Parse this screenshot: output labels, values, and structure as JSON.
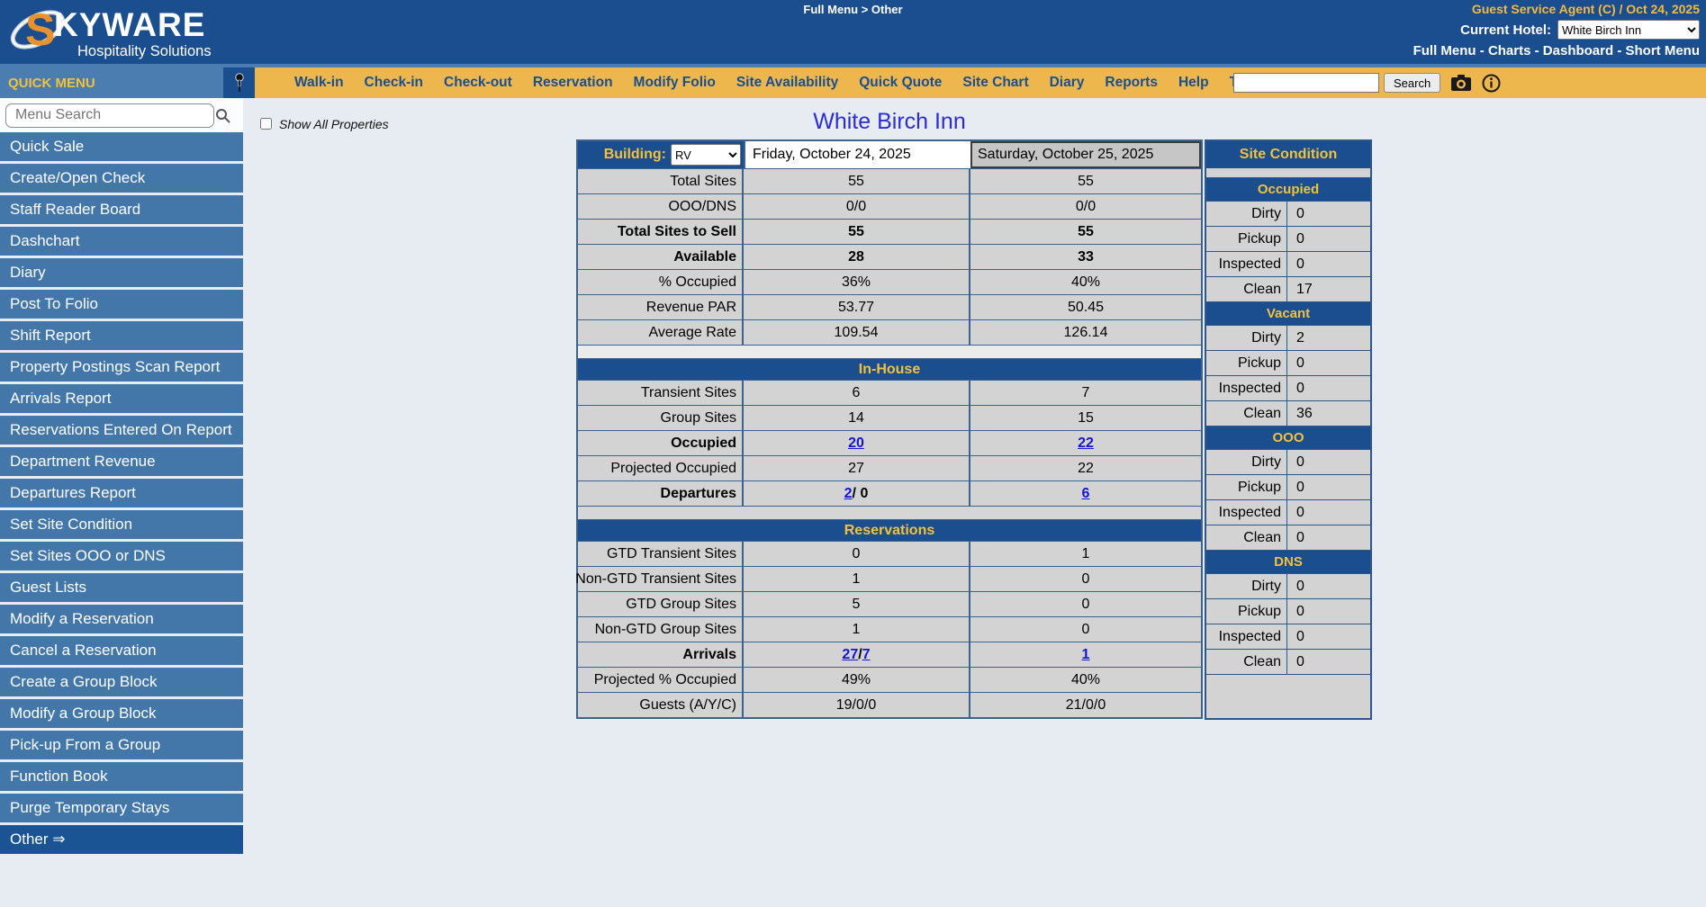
{
  "colors": {
    "navy": "#1B4E8E",
    "gold_bar": "#EDB74D",
    "gold_text": "#F2C13D",
    "sidebar_blue": "#4377A9",
    "sidebar_header_blue": "#4C7DB0",
    "cell_gray": "#D3D3D3",
    "table_border": "#3D628C",
    "link_blue": "#1515D0",
    "title_blue": "#2B2BD8",
    "page_bg": "#E7ECF2"
  },
  "header": {
    "brand_s": "S",
    "brand_rest": "KYWARE",
    "tagline": "Hospitality Solutions",
    "breadcrumb": "Full Menu > Other",
    "agent_info": "Guest Service Agent (C) / Oct 24, 2025",
    "current_hotel_label": "Current Hotel:",
    "current_hotel_value": "White Birch Inn",
    "nav_links": [
      "Full Menu",
      "Charts",
      "Dashboard",
      "Short Menu"
    ],
    "nav_separator": " - "
  },
  "menubar": {
    "items": [
      "Walk-in",
      "Check-in",
      "Check-out",
      "Reservation",
      "Modify Folio",
      "Site Availability",
      "Quick Quote",
      "Site Chart",
      "Diary",
      "Reports",
      "Help",
      "Training"
    ],
    "search_value": "",
    "search_button": "Search"
  },
  "sidebar": {
    "title": "QUICK MENU",
    "search_placeholder": "Menu Search",
    "items": [
      "Quick Sale",
      "Create/Open Check",
      "Staff Reader Board",
      "Dashchart",
      "Diary",
      "Post To Folio",
      "Shift Report",
      "Property Postings Scan Report",
      "Arrivals Report",
      "Reservations Entered On Report",
      "Department Revenue",
      "Departures Report",
      "Set Site Condition",
      "Set Sites OOO or DNS",
      "Guest Lists",
      "Modify a Reservation",
      "Cancel a Reservation",
      "Create a Group Block",
      "Modify a Group Block",
      "Pick-up From a Group",
      "Function Book",
      "Purge Temporary Stays"
    ],
    "last_item": "Other ⇒"
  },
  "content": {
    "show_all_label": "Show All Properties",
    "title": "White Birch Inn"
  },
  "table": {
    "building_label": "Building:",
    "building_value": "RV",
    "date_columns": [
      "Friday, October 24, 2025",
      "Saturday, October 25, 2025"
    ],
    "sections": [
      {
        "band": null,
        "spacer_color": null,
        "rows": [
          {
            "label": "Total Sites",
            "bold": false,
            "cells": [
              [
                "55"
              ],
              [
                "55"
              ]
            ]
          },
          {
            "label": "OOO/DNS",
            "bold": false,
            "cells": [
              [
                "0/0"
              ],
              [
                "0/0"
              ]
            ]
          },
          {
            "label": "Total Sites to Sell",
            "bold": true,
            "cells": [
              [
                "55"
              ],
              [
                "55"
              ]
            ]
          },
          {
            "label": "Available",
            "bold": true,
            "cells": [
              [
                "28"
              ],
              [
                "33"
              ]
            ]
          },
          {
            "label": "% Occupied",
            "bold": false,
            "cells": [
              [
                "36%"
              ],
              [
                "40%"
              ]
            ]
          },
          {
            "label": "Revenue PAR",
            "bold": false,
            "cells": [
              [
                "53.77"
              ],
              [
                "50.45"
              ]
            ]
          },
          {
            "label": "Average Rate",
            "bold": false,
            "cells": [
              [
                "109.54"
              ],
              [
                "126.14"
              ]
            ]
          }
        ]
      },
      {
        "band": "In-House",
        "spacer_color": "#EBEBEB",
        "rows": [
          {
            "label": "Transient Sites",
            "bold": false,
            "cells": [
              [
                "6"
              ],
              [
                "7"
              ]
            ]
          },
          {
            "label": "Group Sites",
            "bold": false,
            "cells": [
              [
                "14"
              ],
              [
                "15"
              ]
            ]
          },
          {
            "label": "Occupied",
            "bold": true,
            "cells": [
              [
                {
                  "link": "20"
                }
              ],
              [
                {
                  "link": "22"
                }
              ]
            ]
          },
          {
            "label": "Projected Occupied",
            "bold": false,
            "cells": [
              [
                "27"
              ],
              [
                "22"
              ]
            ]
          },
          {
            "label": "Departures",
            "bold": true,
            "cells": [
              [
                {
                  "link": "2"
                },
                " / 0"
              ],
              [
                {
                  "link": "6"
                }
              ]
            ]
          }
        ]
      },
      {
        "band": "Reservations",
        "spacer_color": "#D6D6D6",
        "rows": [
          {
            "label": "GTD Transient Sites",
            "bold": false,
            "cells": [
              [
                "0"
              ],
              [
                "1"
              ]
            ]
          },
          {
            "label": "Non-GTD Transient Sites",
            "bold": false,
            "cells": [
              [
                "1"
              ],
              [
                "0"
              ]
            ]
          },
          {
            "label": "GTD Group Sites",
            "bold": false,
            "cells": [
              [
                "5"
              ],
              [
                "0"
              ]
            ]
          },
          {
            "label": "Non-GTD Group Sites",
            "bold": false,
            "cells": [
              [
                "1"
              ],
              [
                "0"
              ]
            ]
          },
          {
            "label": "Arrivals",
            "bold": true,
            "cells": [
              [
                {
                  "link": "27"
                },
                " / ",
                {
                  "link": "7"
                }
              ],
              [
                {
                  "link": "1"
                }
              ]
            ]
          },
          {
            "label": "Projected % Occupied",
            "bold": false,
            "cells": [
              [
                "49%"
              ],
              [
                "40%"
              ]
            ]
          },
          {
            "label": "Guests (A/Y/C)",
            "bold": false,
            "cells": [
              [
                "19/0/0"
              ],
              [
                "21/0/0"
              ]
            ]
          }
        ]
      }
    ]
  },
  "site_condition": {
    "title": "Site Condition",
    "sections": [
      {
        "name": "Occupied",
        "rows": [
          [
            "Dirty",
            "0"
          ],
          [
            "Pickup",
            "0"
          ],
          [
            "Inspected",
            "0"
          ],
          [
            "Clean",
            "17"
          ]
        ]
      },
      {
        "name": "Vacant",
        "rows": [
          [
            "Dirty",
            "2"
          ],
          [
            "Pickup",
            "0"
          ],
          [
            "Inspected",
            "0"
          ],
          [
            "Clean",
            "36"
          ]
        ]
      },
      {
        "name": "OOO",
        "rows": [
          [
            "Dirty",
            "0"
          ],
          [
            "Pickup",
            "0"
          ],
          [
            "Inspected",
            "0"
          ],
          [
            "Clean",
            "0"
          ]
        ]
      },
      {
        "name": "DNS",
        "rows": [
          [
            "Dirty",
            "0"
          ],
          [
            "Pickup",
            "0"
          ],
          [
            "Inspected",
            "0"
          ],
          [
            "Clean",
            "0"
          ]
        ]
      }
    ]
  },
  "icons": {
    "pin": "pushpin",
    "menu_search": "magnifier",
    "toolbar_camera": "camera",
    "toolbar_info": "info-circle"
  }
}
